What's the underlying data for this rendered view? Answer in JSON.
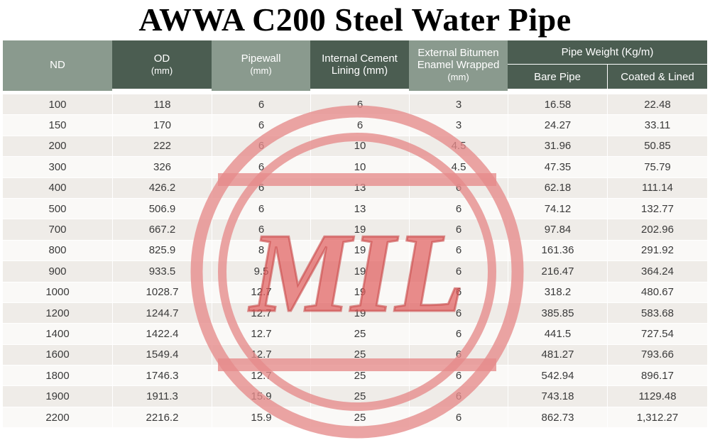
{
  "title": "AWWA C200 Steel Water Pipe",
  "header": {
    "nd": "ND",
    "od": "OD",
    "od_unit": "(mm)",
    "pipewall": "Pipewall",
    "pipewall_unit": "(mm)",
    "cement_line1": "Internal Cement",
    "cement_line2": "Lining (mm)",
    "bitumen_line1": "External Bitumen",
    "bitumen_line2": "Enamel Wrapped",
    "bitumen_unit": "(mm)",
    "weight_group": "Pipe Weight (Kg/m)",
    "bare": "Bare Pipe",
    "coated": "Coated & Lined"
  },
  "rows": [
    [
      "100",
      "118",
      "6",
      "6",
      "3",
      "16.58",
      "22.48"
    ],
    [
      "150",
      "170",
      "6",
      "6",
      "3",
      "24.27",
      "33.11"
    ],
    [
      "200",
      "222",
      "6",
      "10",
      "4.5",
      "31.96",
      "50.85"
    ],
    [
      "300",
      "326",
      "6",
      "10",
      "4.5",
      "47.35",
      "75.79"
    ],
    [
      "400",
      "426.2",
      "6",
      "13",
      "6",
      "62.18",
      "111.14"
    ],
    [
      "500",
      "506.9",
      "6",
      "13",
      "6",
      "74.12",
      "132.77"
    ],
    [
      "700",
      "667.2",
      "6",
      "19",
      "6",
      "97.84",
      "202.96"
    ],
    [
      "800",
      "825.9",
      "8",
      "19",
      "6",
      "161.36",
      "291.92"
    ],
    [
      "900",
      "933.5",
      "9.5",
      "19",
      "6",
      "216.47",
      "364.24"
    ],
    [
      "1000",
      "1028.7",
      "12.7",
      "19",
      "6",
      "318.2",
      "480.67"
    ],
    [
      "1200",
      "1244.7",
      "12.7",
      "19",
      "6",
      "385.85",
      "583.68"
    ],
    [
      "1400",
      "1422.4",
      "12.7",
      "25",
      "6",
      "441.5",
      "727.54"
    ],
    [
      "1600",
      "1549.4",
      "12.7",
      "25",
      "6",
      "481.27",
      "793.66"
    ],
    [
      "1800",
      "1746.3",
      "12.7",
      "25",
      "6",
      "542.94",
      "896.17"
    ],
    [
      "1900",
      "1911.3",
      "15.9",
      "25",
      "6",
      "743.18",
      "1129.48"
    ],
    [
      "2200",
      "2216.2",
      "15.9",
      "25",
      "6",
      "862.73",
      "1,312.27"
    ]
  ],
  "watermark": {
    "text": "MIL",
    "color": "#e06060"
  }
}
